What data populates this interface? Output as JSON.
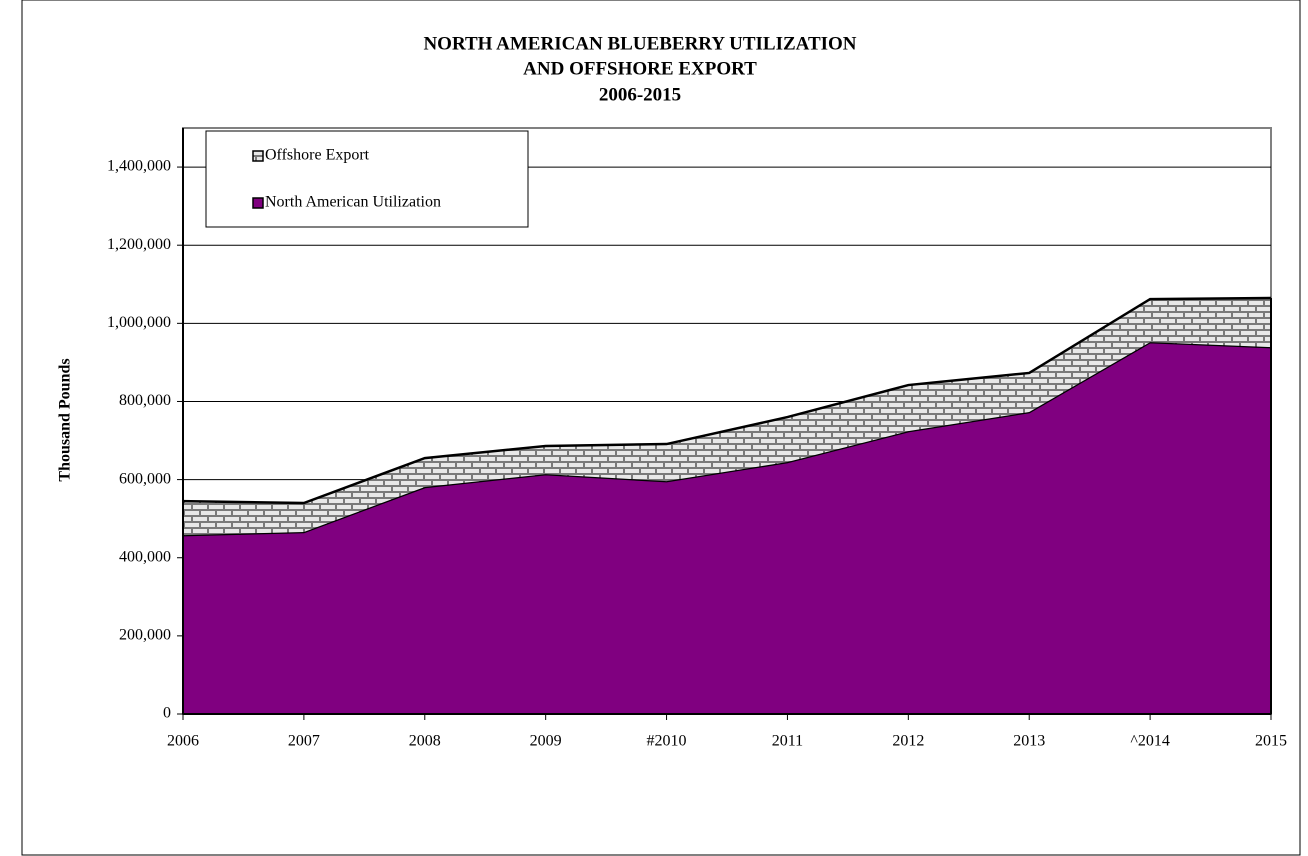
{
  "chart_data": {
    "type": "stacked_area",
    "title": [
      "NORTH AMERICAN BLUEBERRY UTILIZATION",
      "AND OFFSHORE EXPORT",
      "2006-2015"
    ],
    "y_label": "Thousand Pounds",
    "categories": [
      "2006",
      "2007",
      "2008",
      "2009",
      "#2010",
      "2011",
      "2012",
      "2013",
      "^2014",
      "2015"
    ],
    "series": [
      {
        "name": "North American Utilization",
        "color": "#800080",
        "values": [
          458000,
          466000,
          581000,
          614000,
          596000,
          645000,
          724000,
          773000,
          952000,
          939000
        ]
      },
      {
        "name": "Offshore Export",
        "color": "#808080",
        "values": [
          87000,
          74000,
          74000,
          72000,
          95000,
          115000,
          118000,
          100000,
          110000,
          126000
        ]
      }
    ],
    "ylim": [
      0,
      1500000
    ],
    "yticks": [
      {
        "value": 0,
        "label": "0"
      },
      {
        "value": 200000,
        "label": "200,000"
      },
      {
        "value": 400000,
        "label": "400,000"
      },
      {
        "value": 600000,
        "label": "600,000"
      },
      {
        "value": 800000,
        "label": "800,000"
      },
      {
        "value": 1000000,
        "label": "1,000,000"
      },
      {
        "value": 1200000,
        "label": "1,200,000"
      },
      {
        "value": 1400000,
        "label": "1,400,000"
      }
    ],
    "grid": true,
    "legend": "top-left"
  }
}
